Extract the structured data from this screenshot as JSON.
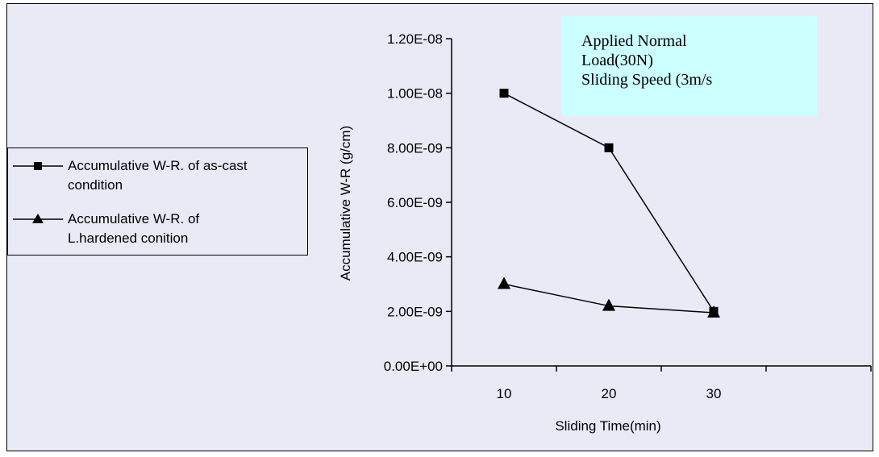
{
  "chart_data": {
    "type": "line",
    "x": [
      10,
      20,
      30
    ],
    "xlabel": "Sliding Time(min)",
    "ylabel": "Accumulative W-R (g/cm)",
    "ylim": [
      0,
      1.2e-08
    ],
    "y_ticks": [
      "0.00E+00",
      "2.00E-09",
      "4.00E-09",
      "6.00E-09",
      "8.00E-09",
      "1.00E-08",
      "1.20E-08"
    ],
    "x_ticks": [
      "10",
      "20",
      "30"
    ],
    "grid": false,
    "legend_position": "left",
    "series": [
      {
        "name": "Accumulative W-R. of as-cast condition",
        "marker": "square",
        "color": "#000000",
        "values": [
          1e-08,
          8e-09,
          2e-09
        ]
      },
      {
        "name": "Accumulative W-R. of L.hardened conition",
        "marker": "triangle",
        "color": "#000000",
        "values": [
          3e-09,
          2.2e-09,
          1.95e-09
        ]
      }
    ],
    "annotation": {
      "lines": [
        "Applied Normal",
        "Load(30N)",
        "Sliding Speed (3m/s"
      ],
      "background": "#ccffff"
    }
  },
  "legend": {
    "entries": [
      {
        "line1": "Accumulative W-R. of as-cast",
        "line2": "condition"
      },
      {
        "line1": "Accumulative W-R. of",
        "line2": "L.hardened conition"
      }
    ]
  },
  "colors": {
    "chart_background": "#eaeaf6",
    "annotation_background": "#ccffff",
    "series_color": "#000000"
  }
}
